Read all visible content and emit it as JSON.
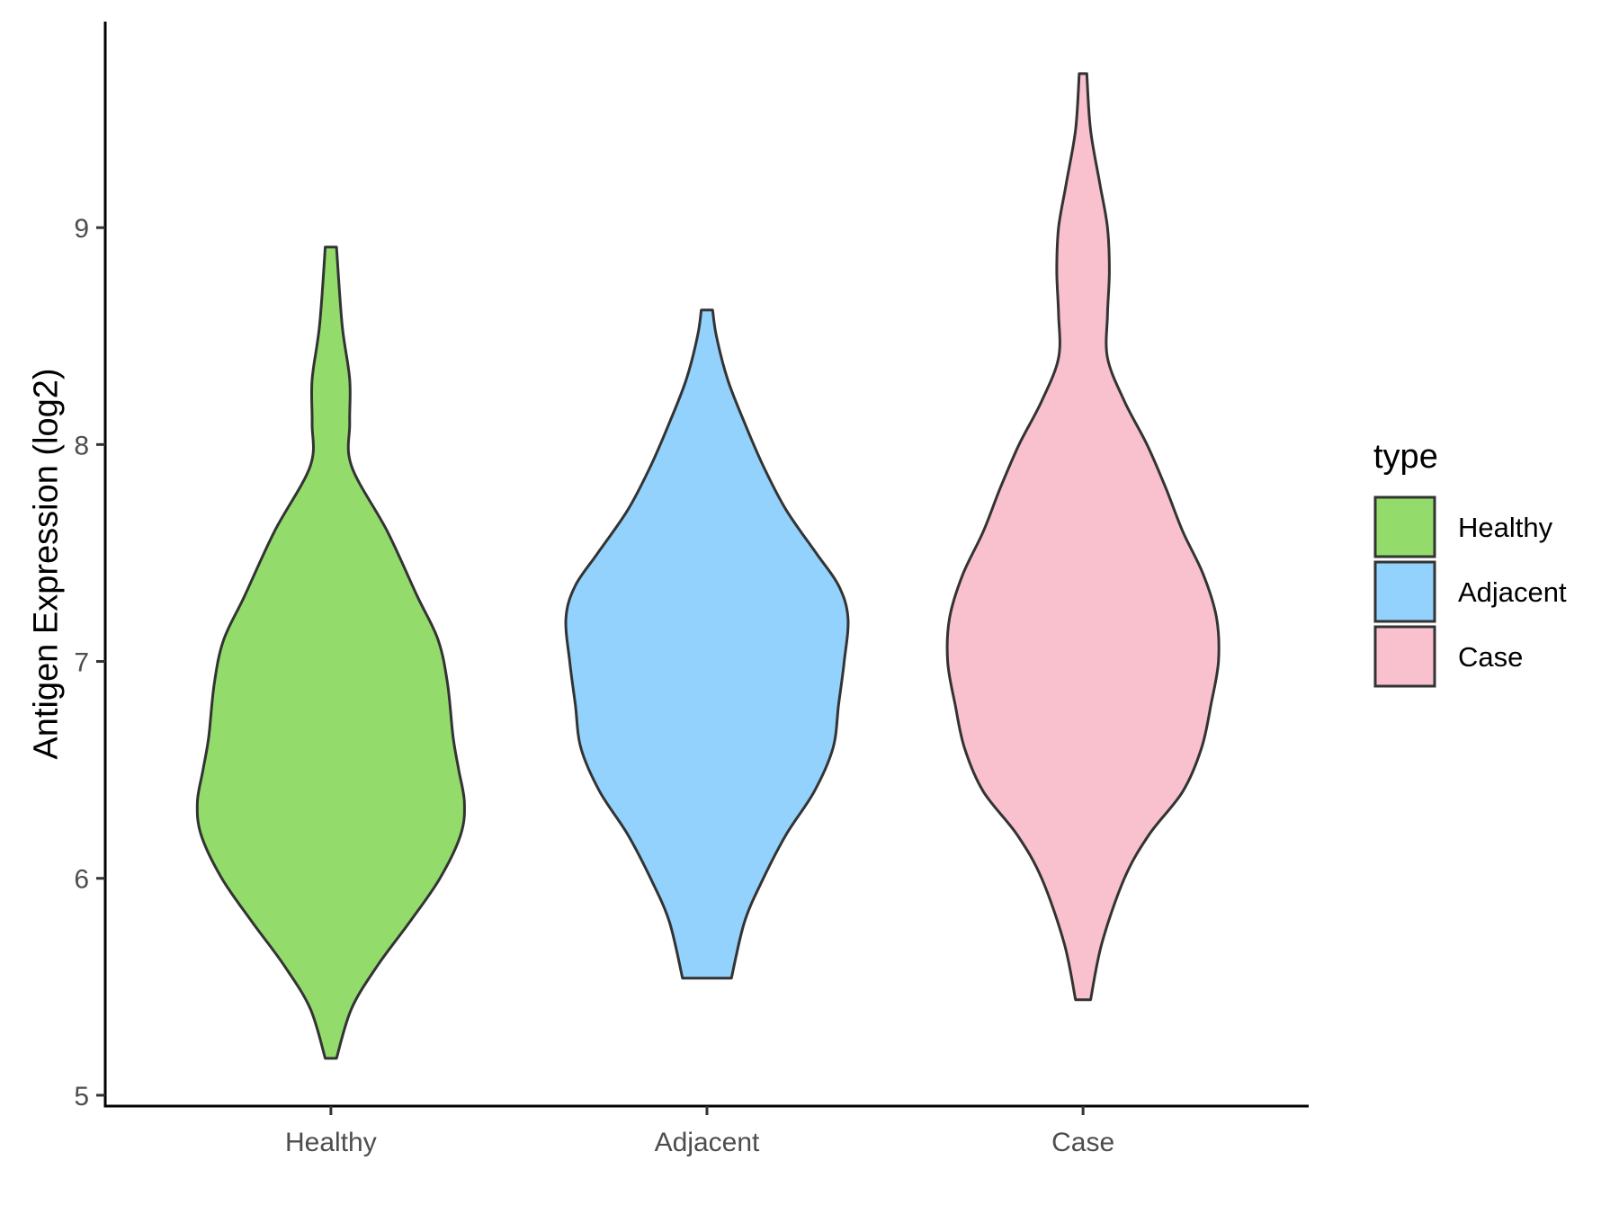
{
  "chart_data": {
    "type": "violin",
    "title": "",
    "xlabel": "",
    "ylabel": "Antigen Expression (log2)",
    "ylim": [
      4.95,
      9.95
    ],
    "yticks": [
      5,
      6,
      7,
      8,
      9
    ],
    "categories": [
      "Healthy",
      "Adjacent",
      "Case"
    ],
    "grid": false,
    "legend": {
      "title": "type",
      "position": "right",
      "entries": [
        "Healthy",
        "Adjacent",
        "Case"
      ]
    },
    "colors": {
      "Healthy": "#93dc6b",
      "Adjacent": "#93d2fd",
      "Case": "#f8c1cd",
      "outline": "#333333"
    },
    "series": [
      {
        "name": "Healthy",
        "min": 5.17,
        "max": 8.91,
        "profile": [
          [
            5.17,
            0.03
          ],
          [
            5.4,
            0.11
          ],
          [
            5.6,
            0.25
          ],
          [
            5.8,
            0.42
          ],
          [
            6.0,
            0.58
          ],
          [
            6.2,
            0.69
          ],
          [
            6.35,
            0.71
          ],
          [
            6.5,
            0.68
          ],
          [
            6.65,
            0.65
          ],
          [
            6.9,
            0.62
          ],
          [
            7.1,
            0.57
          ],
          [
            7.3,
            0.46
          ],
          [
            7.6,
            0.3
          ],
          [
            7.9,
            0.11
          ],
          [
            8.1,
            0.1
          ],
          [
            8.3,
            0.1
          ],
          [
            8.55,
            0.06
          ],
          [
            8.91,
            0.03
          ]
        ]
      },
      {
        "name": "Adjacent",
        "min": 5.54,
        "max": 8.62,
        "profile": [
          [
            5.54,
            0.13
          ],
          [
            5.8,
            0.2
          ],
          [
            6.0,
            0.3
          ],
          [
            6.2,
            0.42
          ],
          [
            6.4,
            0.57
          ],
          [
            6.6,
            0.67
          ],
          [
            6.8,
            0.7
          ],
          [
            7.0,
            0.73
          ],
          [
            7.2,
            0.75
          ],
          [
            7.35,
            0.7
          ],
          [
            7.5,
            0.58
          ],
          [
            7.7,
            0.42
          ],
          [
            7.9,
            0.3
          ],
          [
            8.1,
            0.2
          ],
          [
            8.3,
            0.11
          ],
          [
            8.5,
            0.05
          ],
          [
            8.62,
            0.03
          ]
        ]
      },
      {
        "name": "Case",
        "min": 5.44,
        "max": 9.71,
        "profile": [
          [
            5.44,
            0.04
          ],
          [
            5.7,
            0.1
          ],
          [
            6.0,
            0.22
          ],
          [
            6.2,
            0.35
          ],
          [
            6.4,
            0.53
          ],
          [
            6.6,
            0.63
          ],
          [
            6.8,
            0.68
          ],
          [
            7.0,
            0.72
          ],
          [
            7.2,
            0.71
          ],
          [
            7.4,
            0.64
          ],
          [
            7.6,
            0.53
          ],
          [
            7.8,
            0.44
          ],
          [
            8.0,
            0.34
          ],
          [
            8.2,
            0.22
          ],
          [
            8.4,
            0.13
          ],
          [
            8.6,
            0.13
          ],
          [
            8.8,
            0.14
          ],
          [
            9.0,
            0.13
          ],
          [
            9.2,
            0.09
          ],
          [
            9.45,
            0.04
          ],
          [
            9.71,
            0.02
          ]
        ]
      }
    ]
  }
}
